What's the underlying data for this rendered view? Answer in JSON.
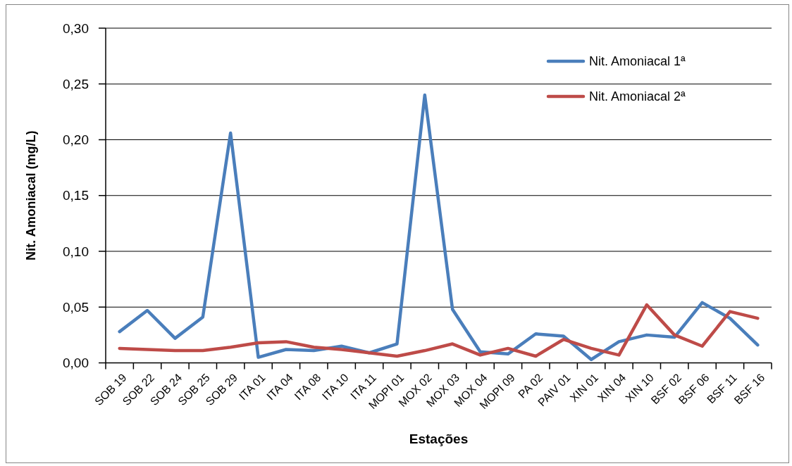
{
  "chart_data": {
    "type": "line",
    "xlabel": "Estações",
    "ylabel": "Nit. Amoniacal (mg/L)",
    "categories": [
      "SOB 19",
      "SOB 22",
      "SOB 24",
      "SOB 25",
      "SOB 29",
      "ITA 01",
      "ITA 04",
      "ITA 08",
      "ITA 10",
      "ITA 11",
      "MOPI 01",
      "MOX 02",
      "MOX 03",
      "MOX 04",
      "MOPI 09",
      "PA 02",
      "PAIV 01",
      "XIN 01",
      "XIN 04",
      "XIN 10",
      "BSF 02",
      "BSF 06",
      "BSF 11",
      "BSF 16"
    ],
    "series": [
      {
        "name": "Nit. Amoniacal 1ª",
        "color": "#4a7ebb",
        "values": [
          0.028,
          0.047,
          0.022,
          0.041,
          0.206,
          0.005,
          0.012,
          0.011,
          0.015,
          0.009,
          0.017,
          0.24,
          0.048,
          0.01,
          0.008,
          0.026,
          0.024,
          0.003,
          0.019,
          0.025,
          0.023,
          0.054,
          0.04,
          0.016
        ]
      },
      {
        "name": "Nit. Amoniacal 2ª",
        "color": "#be4b48",
        "values": [
          0.013,
          0.012,
          0.011,
          0.011,
          0.014,
          0.018,
          0.019,
          0.014,
          0.012,
          0.009,
          0.006,
          0.011,
          0.017,
          0.007,
          0.013,
          0.006,
          0.021,
          0.013,
          0.007,
          0.052,
          0.025,
          0.015,
          0.046,
          0.04
        ]
      }
    ],
    "ylim": [
      0,
      0.3
    ],
    "yticks": [
      {
        "value": 0,
        "label": "0,00"
      },
      {
        "value": 0.05,
        "label": "0,05"
      },
      {
        "value": 0.1,
        "label": "0,10"
      },
      {
        "value": 0.15,
        "label": "0,15"
      },
      {
        "value": 0.2,
        "label": "0,20"
      },
      {
        "value": 0.25,
        "label": "0,25"
      },
      {
        "value": 0.3,
        "label": "0,30"
      }
    ],
    "grid": "y",
    "legend": "top right"
  }
}
